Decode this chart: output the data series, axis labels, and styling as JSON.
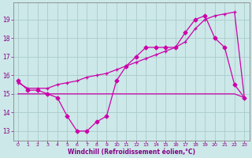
{
  "bg_color": "#cce8e8",
  "grid_color": "#aacccc",
  "line_color": "#cc00aa",
  "line1_x": [
    0,
    1,
    2,
    3,
    4,
    5,
    6,
    7,
    8,
    9,
    10,
    11,
    12,
    13,
    14,
    15,
    16,
    17,
    18,
    19,
    20,
    21,
    22,
    23
  ],
  "line1_y": [
    15.7,
    15.2,
    15.2,
    15.0,
    14.8,
    13.8,
    13.0,
    13.0,
    13.5,
    13.8,
    15.7,
    16.5,
    17.0,
    17.5,
    17.5,
    17.5,
    17.5,
    18.3,
    19.0,
    19.2,
    18.0,
    17.5,
    15.5,
    14.8
  ],
  "line2_x": [
    0,
    1,
    2,
    3,
    4,
    5,
    6,
    7,
    8,
    9,
    10,
    11,
    12,
    13,
    14,
    15,
    16,
    17,
    18,
    19,
    20,
    21,
    22,
    23
  ],
  "line2_y": [
    15.6,
    15.3,
    15.3,
    15.3,
    15.5,
    15.6,
    15.7,
    15.9,
    16.0,
    16.1,
    16.3,
    16.5,
    16.7,
    16.9,
    17.1,
    17.3,
    17.5,
    17.8,
    18.5,
    19.0,
    19.2,
    19.3,
    19.4,
    14.8
  ],
  "line3_x": [
    0,
    1,
    2,
    3,
    4,
    5,
    6,
    7,
    8,
    9,
    10,
    11,
    12,
    13,
    14,
    15,
    16,
    17,
    18,
    19,
    20,
    21,
    22,
    23
  ],
  "line3_y": [
    15.0,
    15.0,
    15.0,
    15.0,
    15.0,
    15.0,
    15.0,
    15.0,
    15.0,
    15.0,
    15.0,
    15.0,
    15.0,
    15.0,
    15.0,
    15.0,
    15.0,
    15.0,
    15.0,
    15.0,
    15.0,
    15.0,
    15.0,
    14.8
  ],
  "xlabel": "Windchill (Refroidissement éolien,°C)",
  "ylim": [
    12.5,
    19.9
  ],
  "xlim": [
    -0.5,
    23.5
  ],
  "yticks": [
    13,
    14,
    15,
    16,
    17,
    18,
    19
  ],
  "xticks": [
    0,
    1,
    2,
    3,
    4,
    5,
    6,
    7,
    8,
    9,
    10,
    11,
    12,
    13,
    14,
    15,
    16,
    17,
    18,
    19,
    20,
    21,
    22,
    23
  ]
}
